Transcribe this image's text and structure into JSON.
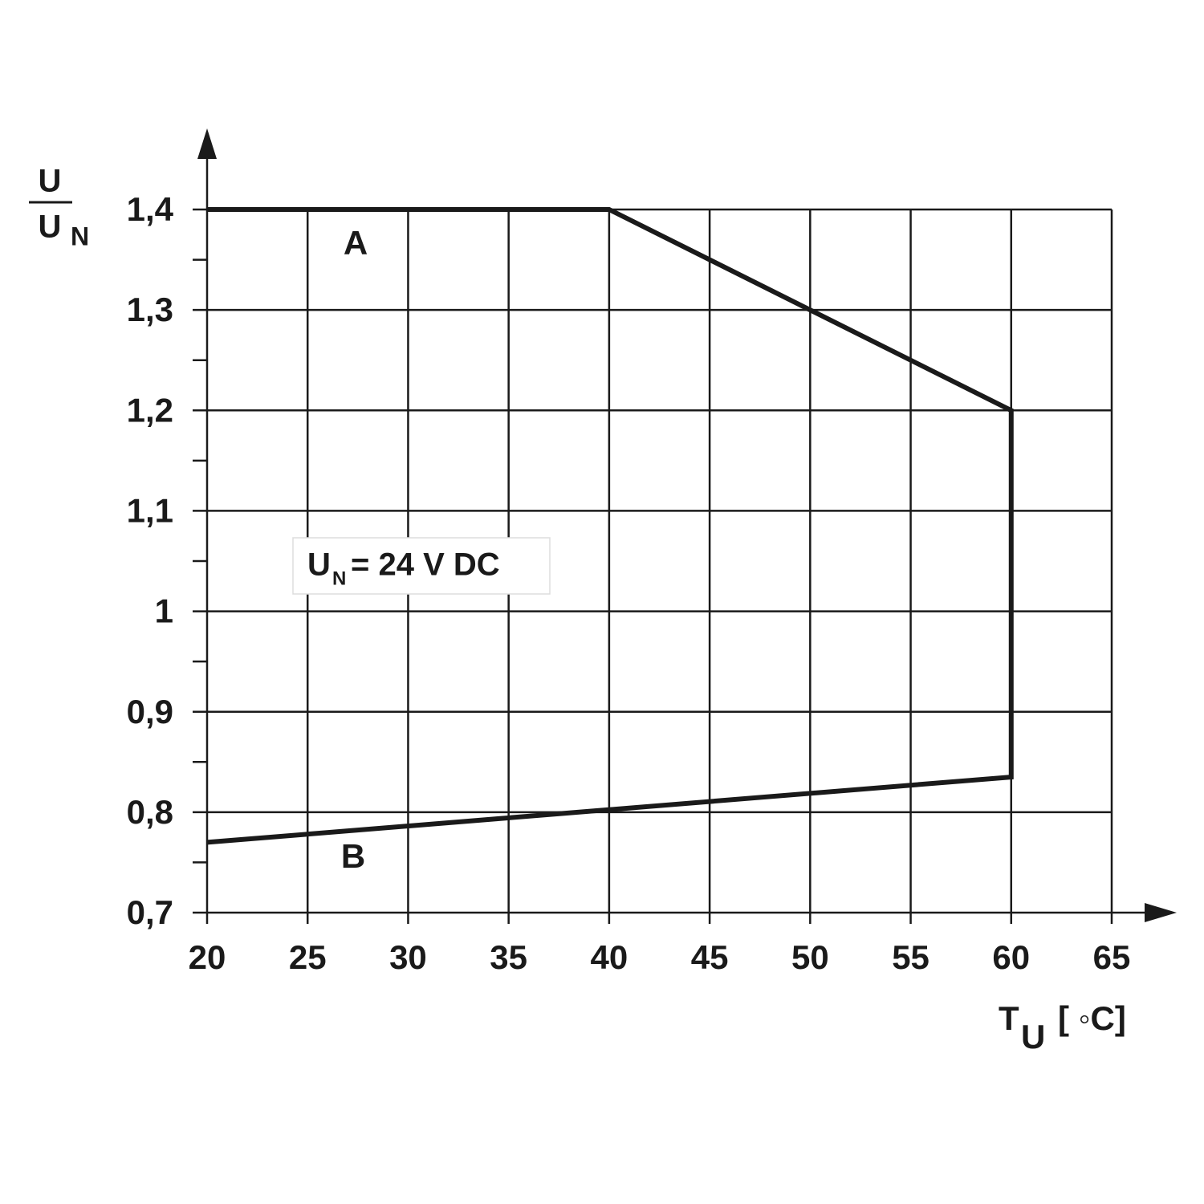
{
  "chart_data": {
    "type": "line",
    "ylabel": {
      "numerator": "U",
      "denominator": "U",
      "denominator_sub": "N"
    },
    "xlabel": {
      "text": "T",
      "sub": "U",
      "suffix": "[ ◦C]"
    },
    "note": {
      "text": "U",
      "sub": "N",
      "suffix": "= 24 V DC"
    },
    "annotations": [
      "A",
      "B"
    ],
    "x": [
      20,
      40,
      60,
      60,
      20
    ],
    "series": [
      {
        "color": "#1a1a1a",
        "values": [
          1.4,
          1.4,
          1.2,
          0.835,
          0.77
        ]
      }
    ],
    "xlim": [
      20,
      65
    ],
    "ylim": [
      0.7,
      1.4
    ],
    "xticks": [
      20,
      25,
      30,
      35,
      40,
      45,
      50,
      55,
      60,
      65
    ],
    "yticks": [
      {
        "value": 0.7,
        "label": "0,7"
      },
      {
        "value": 0.8,
        "label": "0,8"
      },
      {
        "value": 0.9,
        "label": "0,9"
      },
      1,
      {
        "value": 1.1,
        "label": "1,1"
      },
      {
        "value": 1.2,
        "label": "1,2"
      },
      {
        "value": 1.3,
        "label": "1,3"
      },
      {
        "value": 1.4,
        "label": "1,4"
      }
    ],
    "yminor_ticks": [
      0.75,
      0.85,
      0.95,
      1.05,
      1.15,
      1.25,
      1.35
    ],
    "grid": true
  }
}
